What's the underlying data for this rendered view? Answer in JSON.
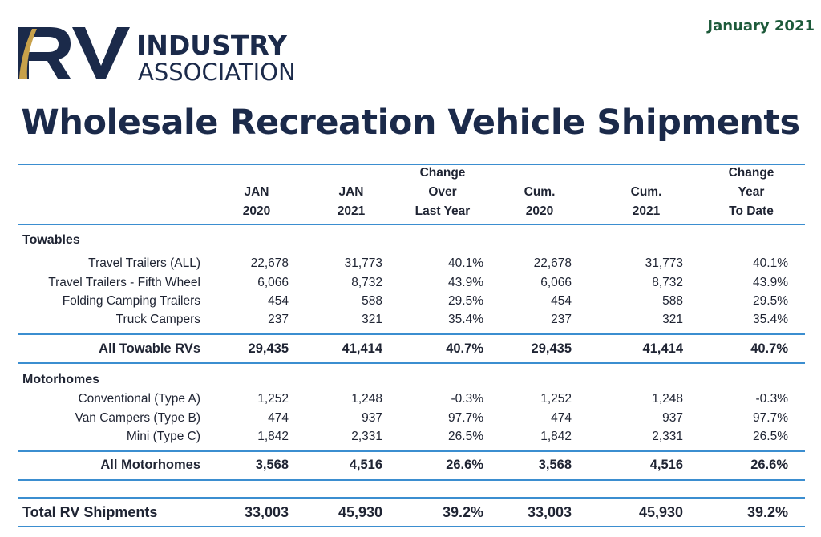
{
  "header": {
    "logo": {
      "rv": "RV",
      "line1": "INDUSTRY",
      "line2": "ASSOCIATION"
    },
    "date": "January 2021",
    "title": "Wholesale Recreation Vehicle Shipments"
  },
  "columns": [
    [
      "JAN",
      "2020"
    ],
    [
      "JAN",
      "2021"
    ],
    [
      "Change",
      "Over",
      "Last Year"
    ],
    [
      "Cum.",
      "2020"
    ],
    [
      "Cum.",
      "2021"
    ],
    [
      "Change",
      "Year",
      "To Date"
    ]
  ],
  "towables": {
    "title": "Towables",
    "rows": [
      {
        "label": "Travel Trailers (ALL)",
        "values": [
          "22,678",
          "31,773",
          "40.1%",
          "22,678",
          "31,773",
          "40.1%"
        ]
      },
      {
        "label": "Travel Trailers - Fifth Wheel",
        "values": [
          "6,066",
          "8,732",
          "43.9%",
          "6,066",
          "8,732",
          "43.9%"
        ]
      },
      {
        "label": "Folding Camping Trailers",
        "values": [
          "454",
          "588",
          "29.5%",
          "454",
          "588",
          "29.5%"
        ]
      },
      {
        "label": "Truck Campers",
        "values": [
          "237",
          "321",
          "35.4%",
          "237",
          "321",
          "35.4%"
        ]
      }
    ],
    "subtotal": {
      "label": "All Towable RVs",
      "values": [
        "29,435",
        "41,414",
        "40.7%",
        "29,435",
        "41,414",
        "40.7%"
      ]
    }
  },
  "motorhomes": {
    "title": "Motorhomes",
    "rows": [
      {
        "label": "Conventional (Type A)",
        "values": [
          "1,252",
          "1,248",
          "-0.3%",
          "1,252",
          "1,248",
          "-0.3%"
        ]
      },
      {
        "label": "Van Campers (Type B)",
        "values": [
          "474",
          "937",
          "97.7%",
          "474",
          "937",
          "97.7%"
        ]
      },
      {
        "label": "Mini (Type C)",
        "values": [
          "1,842",
          "2,331",
          "26.5%",
          "1,842",
          "2,331",
          "26.5%"
        ]
      }
    ],
    "subtotal": {
      "label": "All Motorhomes",
      "values": [
        "3,568",
        "4,516",
        "26.6%",
        "3,568",
        "4,516",
        "26.6%"
      ]
    }
  },
  "total": {
    "label": "Total RV Shipments",
    "values": [
      "33,003",
      "45,930",
      "39.2%",
      "33,003",
      "45,930",
      "39.2%"
    ]
  },
  "colors": {
    "navy": "#1b2a4a",
    "gold": "#c8a14a",
    "accent_rule": "#3b8ed0",
    "date_green": "#1d5a3a"
  }
}
